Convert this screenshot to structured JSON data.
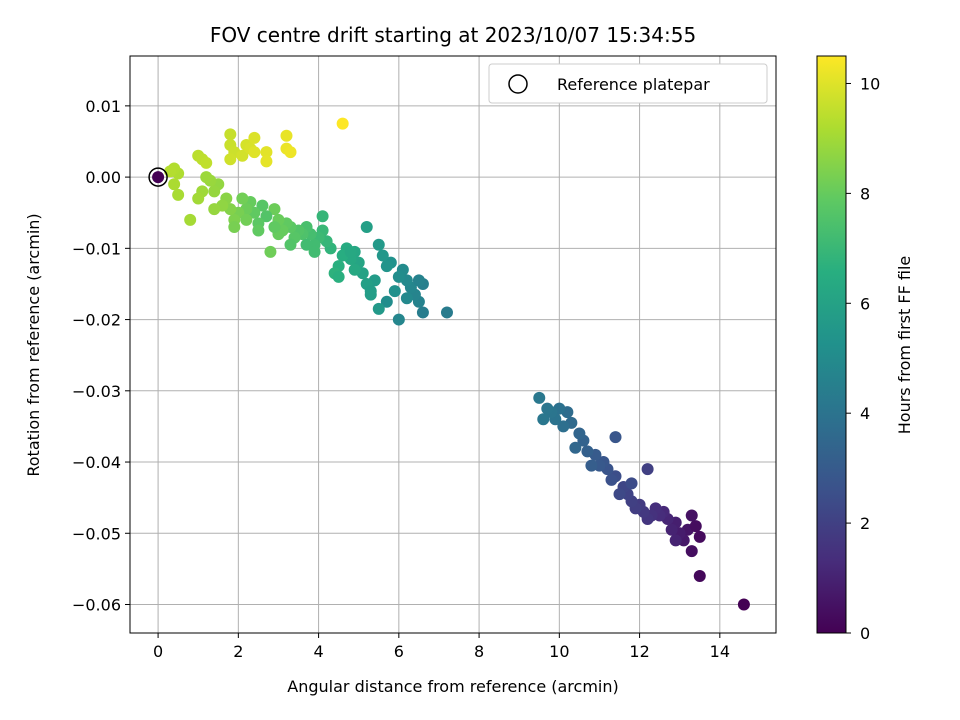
{
  "chart_data": {
    "type": "scatter",
    "title": "FOV centre drift starting at 2023/10/07 15:34:55",
    "xlabel": "Angular distance from reference (arcmin)",
    "ylabel": "Rotation from reference (arcmin)",
    "xlim": [
      -0.7,
      15.4
    ],
    "ylim": [
      -0.064,
      0.017
    ],
    "x_ticks": [
      0,
      2,
      4,
      6,
      8,
      10,
      12,
      14
    ],
    "x_tick_labels": [
      "0",
      "2",
      "4",
      "6",
      "8",
      "10",
      "12",
      "14"
    ],
    "y_ticks": [
      0.01,
      0.0,
      -0.01,
      -0.02,
      -0.03,
      -0.04,
      -0.05,
      -0.06
    ],
    "y_tick_labels": [
      "0.01",
      "0.00",
      "−0.01",
      "−0.02",
      "−0.03",
      "−0.04",
      "−0.05",
      "−0.06"
    ],
    "grid": true,
    "legend": {
      "position": "top-right",
      "entries": [
        {
          "label": "Reference platepar",
          "marker": "open-circle",
          "x": 0,
          "y": 0
        }
      ]
    },
    "colorbar": {
      "label": "Hours from first FF file",
      "colormap": "viridis",
      "range": [
        0,
        10.5
      ],
      "ticks": [
        0,
        2,
        4,
        6,
        8,
        10
      ],
      "tick_labels": [
        "0",
        "2",
        "4",
        "6",
        "8",
        "10"
      ]
    },
    "points": [
      [
        0.0,
        0.0,
        0.0
      ],
      [
        14.6,
        -0.06,
        0.0
      ],
      [
        13.5,
        -0.056,
        0.2
      ],
      [
        13.5,
        -0.0505,
        0.3
      ],
      [
        13.3,
        -0.0525,
        0.4
      ],
      [
        13.3,
        -0.0475,
        0.5
      ],
      [
        13.2,
        -0.0495,
        0.6
      ],
      [
        13.1,
        -0.051,
        0.7
      ],
      [
        13.0,
        -0.05,
        0.8
      ],
      [
        12.9,
        -0.0485,
        0.9
      ],
      [
        12.8,
        -0.0495,
        1.0
      ],
      [
        12.7,
        -0.048,
        1.1
      ],
      [
        12.6,
        -0.047,
        1.2
      ],
      [
        12.5,
        -0.0475,
        1.3
      ],
      [
        12.4,
        -0.0465,
        1.4
      ],
      [
        12.3,
        -0.0475,
        1.5
      ],
      [
        12.2,
        -0.048,
        1.6
      ],
      [
        12.1,
        -0.047,
        1.7
      ],
      [
        12.0,
        -0.046,
        1.8
      ],
      [
        11.9,
        -0.0465,
        1.9
      ],
      [
        11.8,
        -0.0455,
        2.0
      ],
      [
        11.7,
        -0.0445,
        2.1
      ],
      [
        11.6,
        -0.0435,
        2.2
      ],
      [
        11.5,
        -0.0445,
        2.3
      ],
      [
        11.8,
        -0.043,
        2.4
      ],
      [
        11.4,
        -0.042,
        2.5
      ],
      [
        11.3,
        -0.0425,
        2.6
      ],
      [
        11.2,
        -0.041,
        2.7
      ],
      [
        11.1,
        -0.04,
        2.8
      ],
      [
        11.0,
        -0.0405,
        2.9
      ],
      [
        10.9,
        -0.039,
        3.0
      ],
      [
        10.8,
        -0.0405,
        3.1
      ],
      [
        10.7,
        -0.0385,
        3.2
      ],
      [
        10.6,
        -0.037,
        3.3
      ],
      [
        10.5,
        -0.036,
        3.4
      ],
      [
        10.4,
        -0.038,
        3.5
      ],
      [
        10.3,
        -0.0345,
        3.6
      ],
      [
        10.2,
        -0.033,
        3.7
      ],
      [
        10.1,
        -0.035,
        3.8
      ],
      [
        10.0,
        -0.0325,
        3.9
      ],
      [
        9.9,
        -0.034,
        4.0
      ],
      [
        9.8,
        -0.033,
        4.05
      ],
      [
        9.7,
        -0.0325,
        4.1
      ],
      [
        9.6,
        -0.034,
        4.15
      ],
      [
        9.5,
        -0.031,
        4.2
      ],
      [
        12.2,
        -0.041,
        2.0
      ],
      [
        11.4,
        -0.0365,
        2.8
      ],
      [
        13.4,
        -0.049,
        0.35
      ],
      [
        12.9,
        -0.051,
        1.0
      ],
      [
        7.2,
        -0.019,
        4.3
      ],
      [
        6.6,
        -0.015,
        4.5
      ],
      [
        6.5,
        -0.0175,
        4.6
      ],
      [
        6.4,
        -0.0165,
        4.7
      ],
      [
        6.3,
        -0.0155,
        4.8
      ],
      [
        6.2,
        -0.0145,
        4.9
      ],
      [
        6.1,
        -0.013,
        5.0
      ],
      [
        6.0,
        -0.014,
        5.1
      ],
      [
        5.9,
        -0.016,
        5.2
      ],
      [
        5.8,
        -0.012,
        5.3
      ],
      [
        5.7,
        -0.0125,
        5.4
      ],
      [
        5.6,
        -0.011,
        5.5
      ],
      [
        5.5,
        -0.0095,
        5.6
      ],
      [
        5.4,
        -0.0145,
        5.7
      ],
      [
        5.3,
        -0.0165,
        5.8
      ],
      [
        5.2,
        -0.015,
        5.9
      ],
      [
        5.1,
        -0.0135,
        6.0
      ],
      [
        5.0,
        -0.012,
        6.1
      ],
      [
        4.9,
        -0.0105,
        6.2
      ],
      [
        4.8,
        -0.0115,
        6.3
      ],
      [
        4.7,
        -0.01,
        6.4
      ],
      [
        4.6,
        -0.011,
        6.5
      ],
      [
        4.5,
        -0.0125,
        6.6
      ],
      [
        4.4,
        -0.0135,
        6.7
      ],
      [
        4.3,
        -0.01,
        6.8
      ],
      [
        4.2,
        -0.009,
        6.9
      ],
      [
        4.1,
        -0.0075,
        7.0
      ],
      [
        4.0,
        -0.0085,
        7.1
      ],
      [
        3.9,
        -0.0095,
        7.2
      ],
      [
        3.8,
        -0.008,
        7.3
      ],
      [
        3.7,
        -0.007,
        7.4
      ],
      [
        3.6,
        -0.008,
        7.5
      ],
      [
        3.5,
        -0.0075,
        7.6
      ],
      [
        3.4,
        -0.0085,
        7.7
      ],
      [
        3.3,
        -0.007,
        7.8
      ],
      [
        3.2,
        -0.0065,
        7.9
      ],
      [
        3.1,
        -0.0075,
        8.0
      ],
      [
        3.0,
        -0.006,
        8.05
      ],
      [
        2.9,
        -0.0045,
        8.1
      ],
      [
        2.8,
        -0.0105,
        8.15
      ],
      [
        6.0,
        -0.02,
        4.8
      ],
      [
        5.7,
        -0.0175,
        5.1
      ],
      [
        5.2,
        -0.007,
        5.9
      ],
      [
        4.1,
        -0.0055,
        6.9
      ],
      [
        5.5,
        -0.0185,
        5.6
      ],
      [
        6.2,
        -0.017,
        4.9
      ],
      [
        4.9,
        -0.013,
        6.3
      ],
      [
        3.7,
        -0.0095,
        7.2
      ],
      [
        2.7,
        -0.0055,
        7.6
      ],
      [
        2.6,
        -0.004,
        7.7
      ],
      [
        2.5,
        -0.0065,
        7.8
      ],
      [
        2.4,
        -0.005,
        7.9
      ],
      [
        2.3,
        -0.0035,
        8.0
      ],
      [
        2.2,
        -0.0045,
        8.1
      ],
      [
        2.1,
        -0.003,
        8.2
      ],
      [
        2.0,
        -0.005,
        8.3
      ],
      [
        1.9,
        -0.006,
        8.4
      ],
      [
        1.8,
        -0.0045,
        8.5
      ],
      [
        1.7,
        -0.003,
        8.6
      ],
      [
        1.6,
        -0.004,
        8.7
      ],
      [
        1.5,
        -0.001,
        8.75
      ],
      [
        1.4,
        -0.002,
        8.8
      ],
      [
        1.3,
        -0.0005,
        8.85
      ],
      [
        1.2,
        0.0,
        8.9
      ],
      [
        1.1,
        -0.002,
        8.95
      ],
      [
        1.0,
        -0.003,
        9.0
      ],
      [
        0.8,
        -0.006,
        9.05
      ],
      [
        0.5,
        -0.0025,
        9.1
      ],
      [
        0.4,
        -0.001,
        9.15
      ],
      [
        0.5,
        0.0005,
        9.2
      ],
      [
        0.4,
        0.0012,
        9.25
      ],
      [
        0.3,
        0.0008,
        9.3
      ],
      [
        1.0,
        0.003,
        9.4
      ],
      [
        1.1,
        0.0025,
        9.45
      ],
      [
        1.2,
        0.002,
        9.5
      ],
      [
        1.8,
        0.006,
        9.6
      ],
      [
        1.8,
        0.0045,
        9.65
      ],
      [
        1.9,
        0.0035,
        9.7
      ],
      [
        1.8,
        0.0025,
        9.75
      ],
      [
        2.1,
        0.003,
        9.8
      ],
      [
        2.2,
        0.0045,
        9.85
      ],
      [
        2.3,
        0.004,
        9.9
      ],
      [
        2.4,
        0.0055,
        9.95
      ],
      [
        2.4,
        0.0035,
        10.0
      ],
      [
        2.7,
        0.0035,
        10.05
      ],
      [
        2.7,
        0.0022,
        10.1
      ],
      [
        3.2,
        0.0058,
        10.15
      ],
      [
        3.2,
        0.004,
        10.2
      ],
      [
        3.3,
        0.0035,
        10.25
      ],
      [
        4.6,
        0.0075,
        10.5
      ],
      [
        1.9,
        -0.007,
        8.3
      ],
      [
        2.5,
        -0.0075,
        7.9
      ],
      [
        3.3,
        -0.0095,
        7.6
      ],
      [
        3.9,
        -0.0105,
        7.2
      ],
      [
        4.5,
        -0.014,
        6.6
      ],
      [
        3.0,
        -0.008,
        8.0
      ],
      [
        2.9,
        -0.007,
        7.9
      ],
      [
        2.2,
        -0.006,
        8.2
      ],
      [
        1.4,
        -0.0045,
        8.8
      ],
      [
        6.6,
        -0.019,
        4.4
      ],
      [
        6.5,
        -0.0145,
        4.6
      ],
      [
        5.3,
        -0.016,
        5.8
      ],
      [
        4.8,
        -0.0105,
        6.3
      ]
    ]
  }
}
